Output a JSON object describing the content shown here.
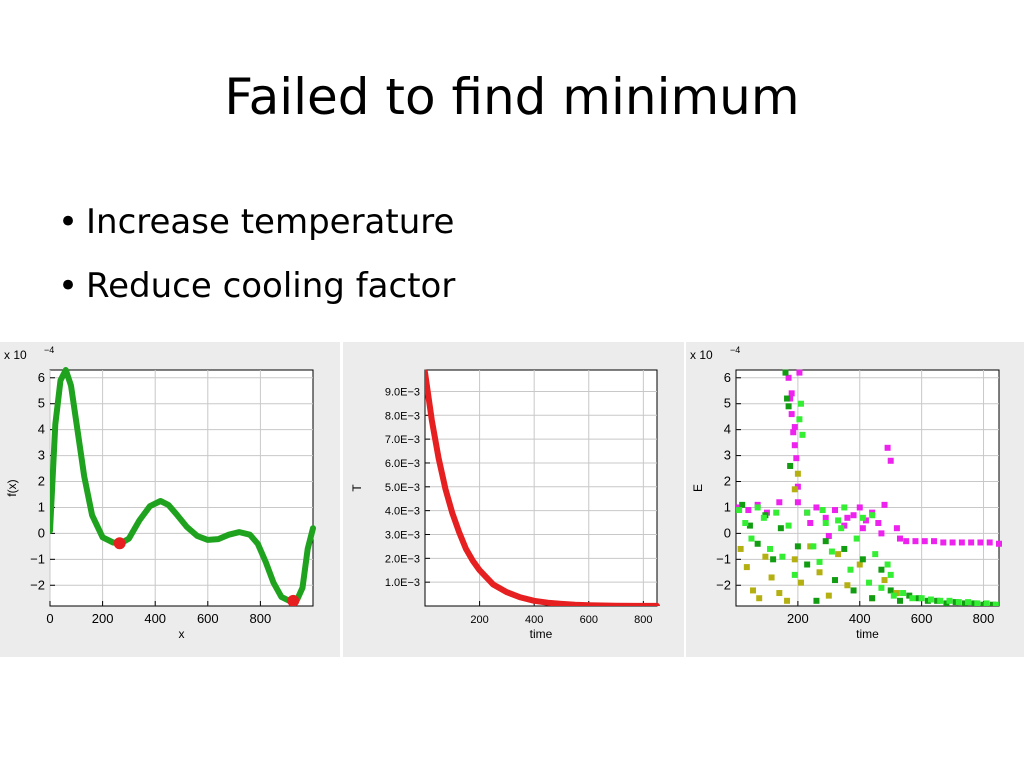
{
  "slide": {
    "title": "Failed to find minimum",
    "bullets": [
      "Increase temperature",
      "Reduce cooling factor"
    ]
  },
  "chart_data": [
    {
      "type": "line",
      "xlabel": "x",
      "ylabel": "f(x)",
      "y_scale_label": "x 10",
      "y_scale_exp": "−4",
      "xlim": [
        0,
        1000
      ],
      "ylim": [
        -2.8,
        6.3
      ],
      "x_ticks": [
        0,
        200,
        400,
        600,
        800
      ],
      "x_tick_labels": [
        "0",
        "200",
        "400",
        "600",
        "800"
      ],
      "y_ticks": [
        6,
        5,
        4,
        3,
        2,
        1,
        0,
        -1,
        -2
      ],
      "y_tick_labels": [
        "6",
        "5",
        "4",
        "3",
        "2",
        "1",
        "0",
        "−1",
        "−2"
      ],
      "grid": true,
      "series": [
        {
          "color": "#1fa31f",
          "x": [
            0,
            20,
            40,
            60,
            80,
            100,
            130,
            160,
            200,
            240,
            270,
            300,
            340,
            380,
            420,
            450,
            480,
            520,
            560,
            600,
            640,
            680,
            720,
            760,
            790,
            820,
            850,
            880,
            910,
            940,
            960,
            980,
            1000
          ],
          "y": [
            0.1,
            4.2,
            5.9,
            6.3,
            5.7,
            4.3,
            2.2,
            0.7,
            -0.15,
            -0.35,
            -0.38,
            -0.2,
            0.5,
            1.05,
            1.25,
            1.1,
            0.75,
            0.25,
            -0.1,
            -0.25,
            -0.22,
            -0.05,
            0.05,
            -0.05,
            -0.4,
            -1.1,
            -1.9,
            -2.45,
            -2.6,
            -2.55,
            -2.1,
            -0.6,
            0.2
          ]
        }
      ],
      "highlight_points": [
        {
          "x": 265,
          "y": -0.38,
          "color": "#e62020"
        },
        {
          "x": 925,
          "y": -2.6,
          "color": "#e62020"
        }
      ]
    },
    {
      "type": "line",
      "xlabel": "time",
      "ylabel": "T",
      "xlim": [
        0,
        850
      ],
      "ylim": [
        0,
        0.0099
      ],
      "x_ticks": [
        200,
        400,
        600,
        800
      ],
      "x_tick_labels": [
        "200",
        "400",
        "600",
        "800"
      ],
      "y_ticks": [
        0.009,
        0.008,
        0.007,
        0.006,
        0.005,
        0.004,
        0.003,
        0.002,
        0.001
      ],
      "y_tick_labels": [
        "9.0E−3",
        "8.0E−3",
        "7.0E−3",
        "6.0E−3",
        "5.0E−3",
        "4.0E−3",
        "3.0E−3",
        "2.0E−3",
        "1.0E−3"
      ],
      "grid": true,
      "series": [
        {
          "color": "#e62020",
          "x": [
            0,
            25,
            50,
            75,
            100,
            125,
            150,
            175,
            200,
            250,
            300,
            350,
            400,
            450,
            500,
            550,
            600,
            700,
            800,
            850
          ],
          "y": [
            0.0098,
            0.0078,
            0.0062,
            0.0049,
            0.0039,
            0.0031,
            0.0024,
            0.0019,
            0.0015,
            0.0009,
            0.00058,
            0.00036,
            0.00022,
            0.00014,
            9e-05,
            5e-05,
            3e-05,
            1e-05,
            5e-06,
            3e-06
          ]
        }
      ]
    },
    {
      "type": "scatter",
      "xlabel": "time",
      "ylabel": "E",
      "y_scale_label": "x 10",
      "y_scale_exp": "−4",
      "xlim": [
        0,
        850
      ],
      "ylim": [
        -2.8,
        6.3
      ],
      "x_ticks": [
        200,
        400,
        600,
        800
      ],
      "x_tick_labels": [
        "200",
        "400",
        "600",
        "800"
      ],
      "y_ticks": [
        6,
        5,
        4,
        3,
        2,
        1,
        0,
        -1,
        -2
      ],
      "y_tick_labels": [
        "6",
        "5",
        "4",
        "3",
        "2",
        "1",
        "0",
        "−1",
        "−2"
      ],
      "grid": true,
      "series": [
        {
          "color": "#ee22ee",
          "x": [
            10,
            40,
            70,
            100,
            140,
            170,
            175,
            180,
            185,
            190,
            195,
            200,
            205,
            180,
            190,
            200,
            230,
            260,
            290,
            320,
            350,
            380,
            400,
            420,
            440,
            460,
            480,
            490,
            500,
            520,
            550,
            580,
            610,
            640,
            670,
            700,
            730,
            760,
            790,
            820,
            850,
            240,
            300,
            360,
            410,
            470,
            530
          ],
          "y": [
            1.0,
            0.9,
            1.1,
            0.8,
            1.2,
            6.0,
            5.2,
            4.6,
            3.9,
            3.4,
            2.9,
            1.8,
            6.2,
            5.4,
            4.1,
            1.2,
            0.8,
            1.0,
            0.6,
            0.9,
            0.3,
            0.7,
            1.0,
            0.5,
            0.8,
            0.4,
            1.1,
            3.3,
            2.8,
            0.2,
            -0.3,
            -0.3,
            -0.3,
            -0.3,
            -0.35,
            -0.35,
            -0.35,
            -0.35,
            -0.35,
            -0.35,
            -0.4,
            0.4,
            -0.1,
            0.6,
            0.2,
            0.0,
            -0.2
          ]
        },
        {
          "color": "#b5b012",
          "x": [
            15,
            35,
            55,
            75,
            95,
            115,
            140,
            165,
            190,
            210,
            240,
            270,
            300,
            330,
            360,
            400,
            440,
            480,
            520,
            190,
            200
          ],
          "y": [
            -0.6,
            -1.3,
            -2.2,
            -2.5,
            -0.9,
            -1.7,
            -2.3,
            -2.6,
            -1.0,
            -1.9,
            -0.5,
            -1.5,
            -2.4,
            -0.8,
            -2.0,
            -1.2,
            -2.5,
            -1.8,
            -2.3,
            1.7,
            2.3
          ]
        },
        {
          "color": "#129c12",
          "x": [
            20,
            45,
            70,
            95,
            120,
            145,
            160,
            165,
            170,
            175,
            200,
            230,
            260,
            290,
            320,
            350,
            380,
            410,
            440,
            470,
            500,
            530,
            560,
            590,
            620,
            650,
            680,
            710,
            740,
            770,
            800,
            830
          ],
          "y": [
            1.1,
            0.3,
            -0.4,
            0.7,
            -1.0,
            0.2,
            6.2,
            5.2,
            4.9,
            2.6,
            -0.5,
            -1.2,
            -2.6,
            -0.3,
            -1.8,
            -0.6,
            -2.2,
            -1.0,
            -2.5,
            -1.4,
            -2.2,
            -2.6,
            -2.4,
            -2.5,
            -2.6,
            -2.6,
            -2.7,
            -2.65,
            -2.7,
            -2.7,
            -2.75,
            -2.75
          ]
        },
        {
          "color": "#33ee33",
          "x": [
            10,
            30,
            50,
            70,
            90,
            110,
            130,
            150,
            170,
            190,
            205,
            210,
            215,
            230,
            250,
            270,
            290,
            310,
            330,
            350,
            370,
            390,
            410,
            430,
            450,
            470,
            490,
            510,
            540,
            570,
            600,
            630,
            660,
            690,
            720,
            750,
            780,
            810,
            840,
            280,
            340,
            440,
            500
          ],
          "y": [
            0.9,
            0.4,
            -0.2,
            1.0,
            0.6,
            -0.6,
            0.8,
            -0.9,
            0.3,
            -1.6,
            4.4,
            5.0,
            3.8,
            0.8,
            -0.5,
            -1.1,
            0.4,
            -0.7,
            0.5,
            1.0,
            -1.4,
            -0.2,
            0.6,
            -1.9,
            -0.8,
            -2.1,
            -1.2,
            -2.4,
            -2.3,
            -2.5,
            -2.5,
            -2.55,
            -2.6,
            -2.6,
            -2.65,
            -2.65,
            -2.7,
            -2.7,
            -2.75,
            0.9,
            0.2,
            0.7,
            -1.6
          ]
        }
      ]
    }
  ]
}
